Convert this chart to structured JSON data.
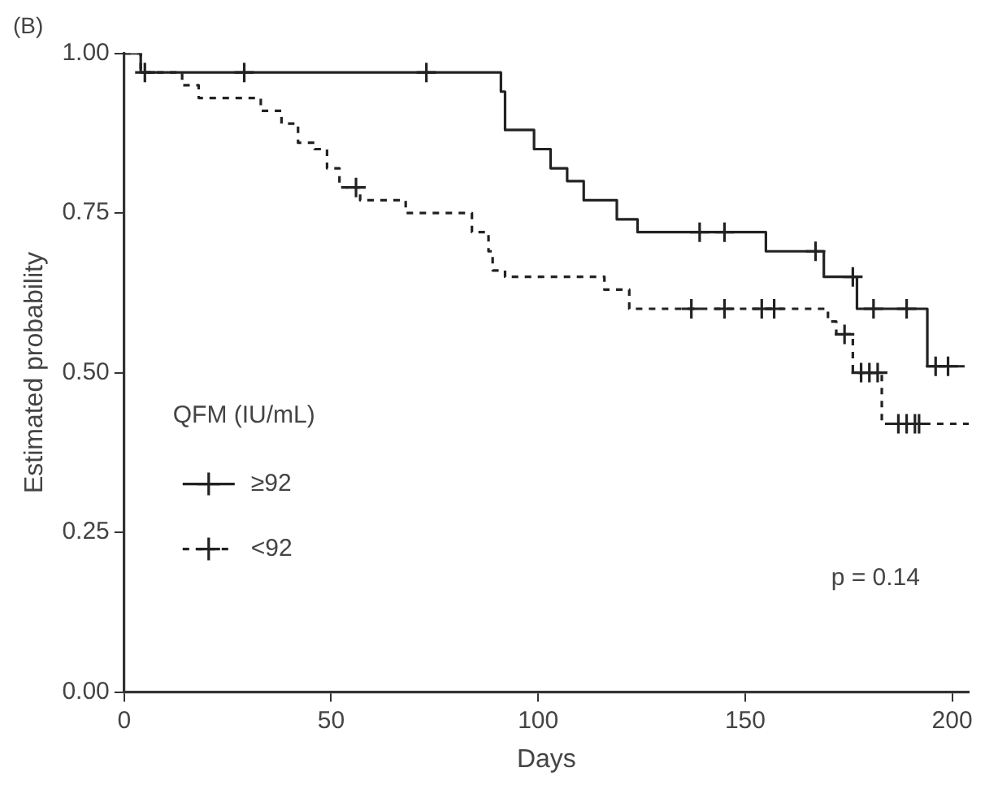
{
  "chart_data": {
    "type": "step",
    "title": "(B)",
    "xlabel": "Days",
    "ylabel": "Estimated probability",
    "legend_title": "QFM (IU/mL)",
    "legend": "bottom left",
    "grid": false,
    "annotations": [
      "p = 0.14"
    ],
    "xlim": [
      0,
      204
    ],
    "xticks": [
      0,
      50,
      100,
      150,
      200
    ],
    "ylim": [
      0,
      1
    ],
    "yticks": [
      {
        "value": 0,
        "label": "0.00"
      },
      {
        "value": 0.25,
        "label": "0.25"
      },
      {
        "value": 0.5,
        "label": "0.50"
      },
      {
        "value": 0.75,
        "label": "0.75"
      },
      {
        "value": 1,
        "label": "1.00"
      }
    ],
    "series": [
      {
        "name": "≥92",
        "color": "#222222",
        "line_style": "solid",
        "marker": "none",
        "x": [
          0,
          4,
          91,
          92,
          99,
          103,
          107,
          111,
          119,
          124,
          155,
          169,
          177,
          194,
          203
        ],
        "values": [
          1,
          0.97,
          0.94,
          0.88,
          0.85,
          0.82,
          0.8,
          0.77,
          0.74,
          0.72,
          0.69,
          0.65,
          0.6,
          0.51,
          0.51
        ]
      },
      {
        "name": "<92",
        "color": "#222222",
        "line_style": "dashed",
        "marker": "none",
        "x": [
          0,
          4,
          14,
          18,
          33,
          38,
          42,
          46,
          49,
          52,
          57,
          68,
          84,
          88,
          89,
          92,
          116,
          122,
          170,
          172,
          176,
          183,
          204
        ],
        "values": [
          1,
          0.97,
          0.95,
          0.93,
          0.91,
          0.89,
          0.86,
          0.85,
          0.82,
          0.79,
          0.77,
          0.75,
          0.72,
          0.69,
          0.66,
          0.65,
          0.63,
          0.6,
          0.58,
          0.56,
          0.5,
          0.42,
          0.42
        ]
      },
      {
        "type": "scatter",
        "color": "#222222",
        "marker": "cross",
        "x": [
          5,
          29,
          73,
          139,
          145,
          167,
          176,
          181,
          189,
          196,
          199
        ],
        "values": [
          0.97,
          0.97,
          0.97,
          0.72,
          0.72,
          0.69,
          0.65,
          0.6,
          0.6,
          0.51,
          0.51
        ]
      },
      {
        "type": "scatter",
        "color": "#222222",
        "marker": "cross",
        "x": [
          56,
          137,
          145,
          154,
          157,
          174,
          178,
          180,
          182,
          187,
          189,
          191,
          192
        ],
        "values": [
          0.79,
          0.6,
          0.6,
          0.6,
          0.6,
          0.56,
          0.5,
          0.5,
          0.5,
          0.42,
          0.42,
          0.42,
          0.42
        ]
      }
    ]
  }
}
